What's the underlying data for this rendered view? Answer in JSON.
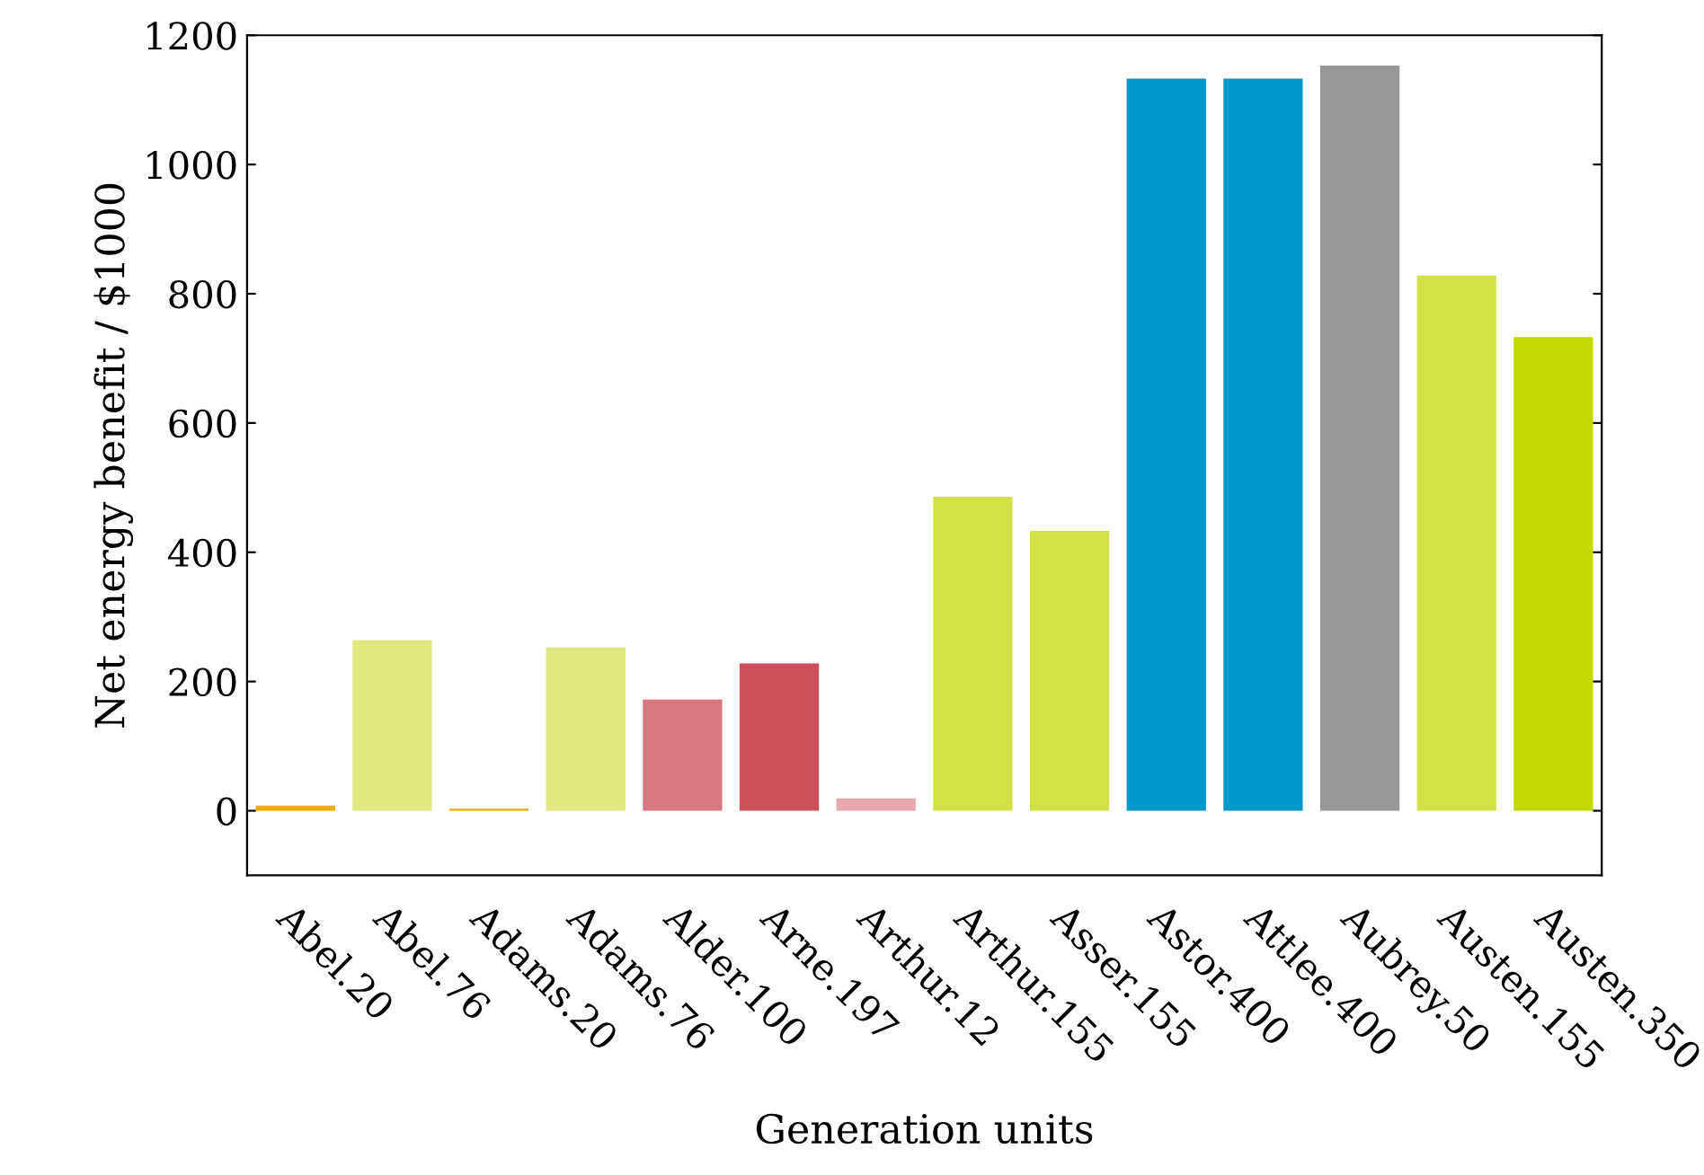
{
  "chart_data": {
    "type": "bar",
    "xlabel": "Generation units",
    "ylabel": "Net energy benefit / $1000",
    "categories": [
      "Abel.20",
      "Abel.76",
      "Adams.20",
      "Adams.76",
      "Alder.100",
      "Arne.197",
      "Arthur.12",
      "Arthur.155",
      "Asser.155",
      "Astor.400",
      "Attlee.400",
      "Aubrey.50",
      "Austen.155",
      "Austen.350"
    ],
    "values": [
      8,
      264,
      3,
      253,
      172,
      228,
      19,
      486,
      433,
      1133,
      1133,
      1153,
      828,
      733
    ],
    "colors": [
      "#f0aa00",
      "#e0e880",
      "#f0aa00",
      "#e0e880",
      "#d87880",
      "#cc5058",
      "#e8a8b0",
      "#d2e244",
      "#d2e244",
      "#0099cc",
      "#0099cc",
      "#979797",
      "#d2e244",
      "#c2d900"
    ],
    "ylim": [
      -100,
      1200
    ],
    "yticks": [
      0,
      200,
      400,
      600,
      800,
      1000,
      1200
    ],
    "grid": false,
    "legend": false
  }
}
